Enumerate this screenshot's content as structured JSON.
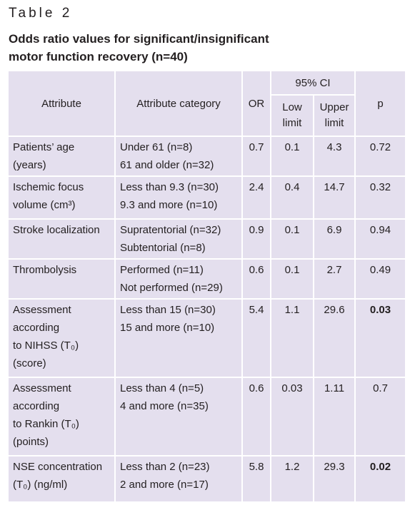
{
  "header": {
    "label": "Table 2",
    "caption": [
      "Odds ratio values for significant/insignificant",
      "motor function recovery (n=40)"
    ]
  },
  "table": {
    "columns": {
      "attribute": "Attribute",
      "category": "Attribute category",
      "or": "OR",
      "ci": "95% CI",
      "low": [
        "Low",
        "limit"
      ],
      "upper": [
        "Upper",
        "limit"
      ],
      "p": "p"
    },
    "rows": [
      {
        "attribute": [
          "Patients’ age",
          "(years)"
        ],
        "category": [
          "Under 61 (n=8)",
          "61 and older (n=32)"
        ],
        "or": "0.7",
        "low": "0.1",
        "upper": "4.3",
        "p": "0.72",
        "p_bold": false
      },
      {
        "attribute": [
          "Ischemic focus",
          "volume (cm³)"
        ],
        "category": [
          "Less than 9.3 (n=30)",
          "9.3 and more (n=10)"
        ],
        "or": "2.4",
        "low": "0.4",
        "upper": "14.7",
        "p": "0.32",
        "p_bold": false
      },
      {
        "attribute": [
          "Stroke localization"
        ],
        "category": [
          "Supratentorial (n=32)",
          "Subtentorial (n=8)"
        ],
        "or": "0.9",
        "low": "0.1",
        "upper": "6.9",
        "p": "0.94",
        "p_bold": false
      },
      {
        "attribute": [
          "Thrombolysis"
        ],
        "category": [
          "Performed (n=11)",
          "Not performed (n=29)"
        ],
        "or": "0.6",
        "low": "0.1",
        "upper": "2.7",
        "p": "0.49",
        "p_bold": false
      },
      {
        "attribute": [
          "Assessment",
          "according",
          "to NIHSS (T₀)",
          "(score)"
        ],
        "category": [
          "Less than 15 (n=30)",
          "15 and more (n=10)"
        ],
        "or": "5.4",
        "low": "1.1",
        "upper": "29.6",
        "p": "0.03",
        "p_bold": true
      },
      {
        "attribute": [
          "Assessment",
          "according",
          "to Rankin (T₀)",
          "(points)"
        ],
        "category": [
          "Less than 4 (n=5)",
          "4 and more (n=35)"
        ],
        "or": "0.6",
        "low": "0.03",
        "upper": "1.11",
        "p": "0.7",
        "p_bold": false
      },
      {
        "attribute": [
          "NSE concentration",
          "(T₀) (ng/ml)"
        ],
        "category": [
          "Less than 2 (n=23)",
          "2 and more (n=17)"
        ],
        "or": "5.8",
        "low": "1.2",
        "upper": "29.3",
        "p": "0.02",
        "p_bold": true
      }
    ]
  }
}
